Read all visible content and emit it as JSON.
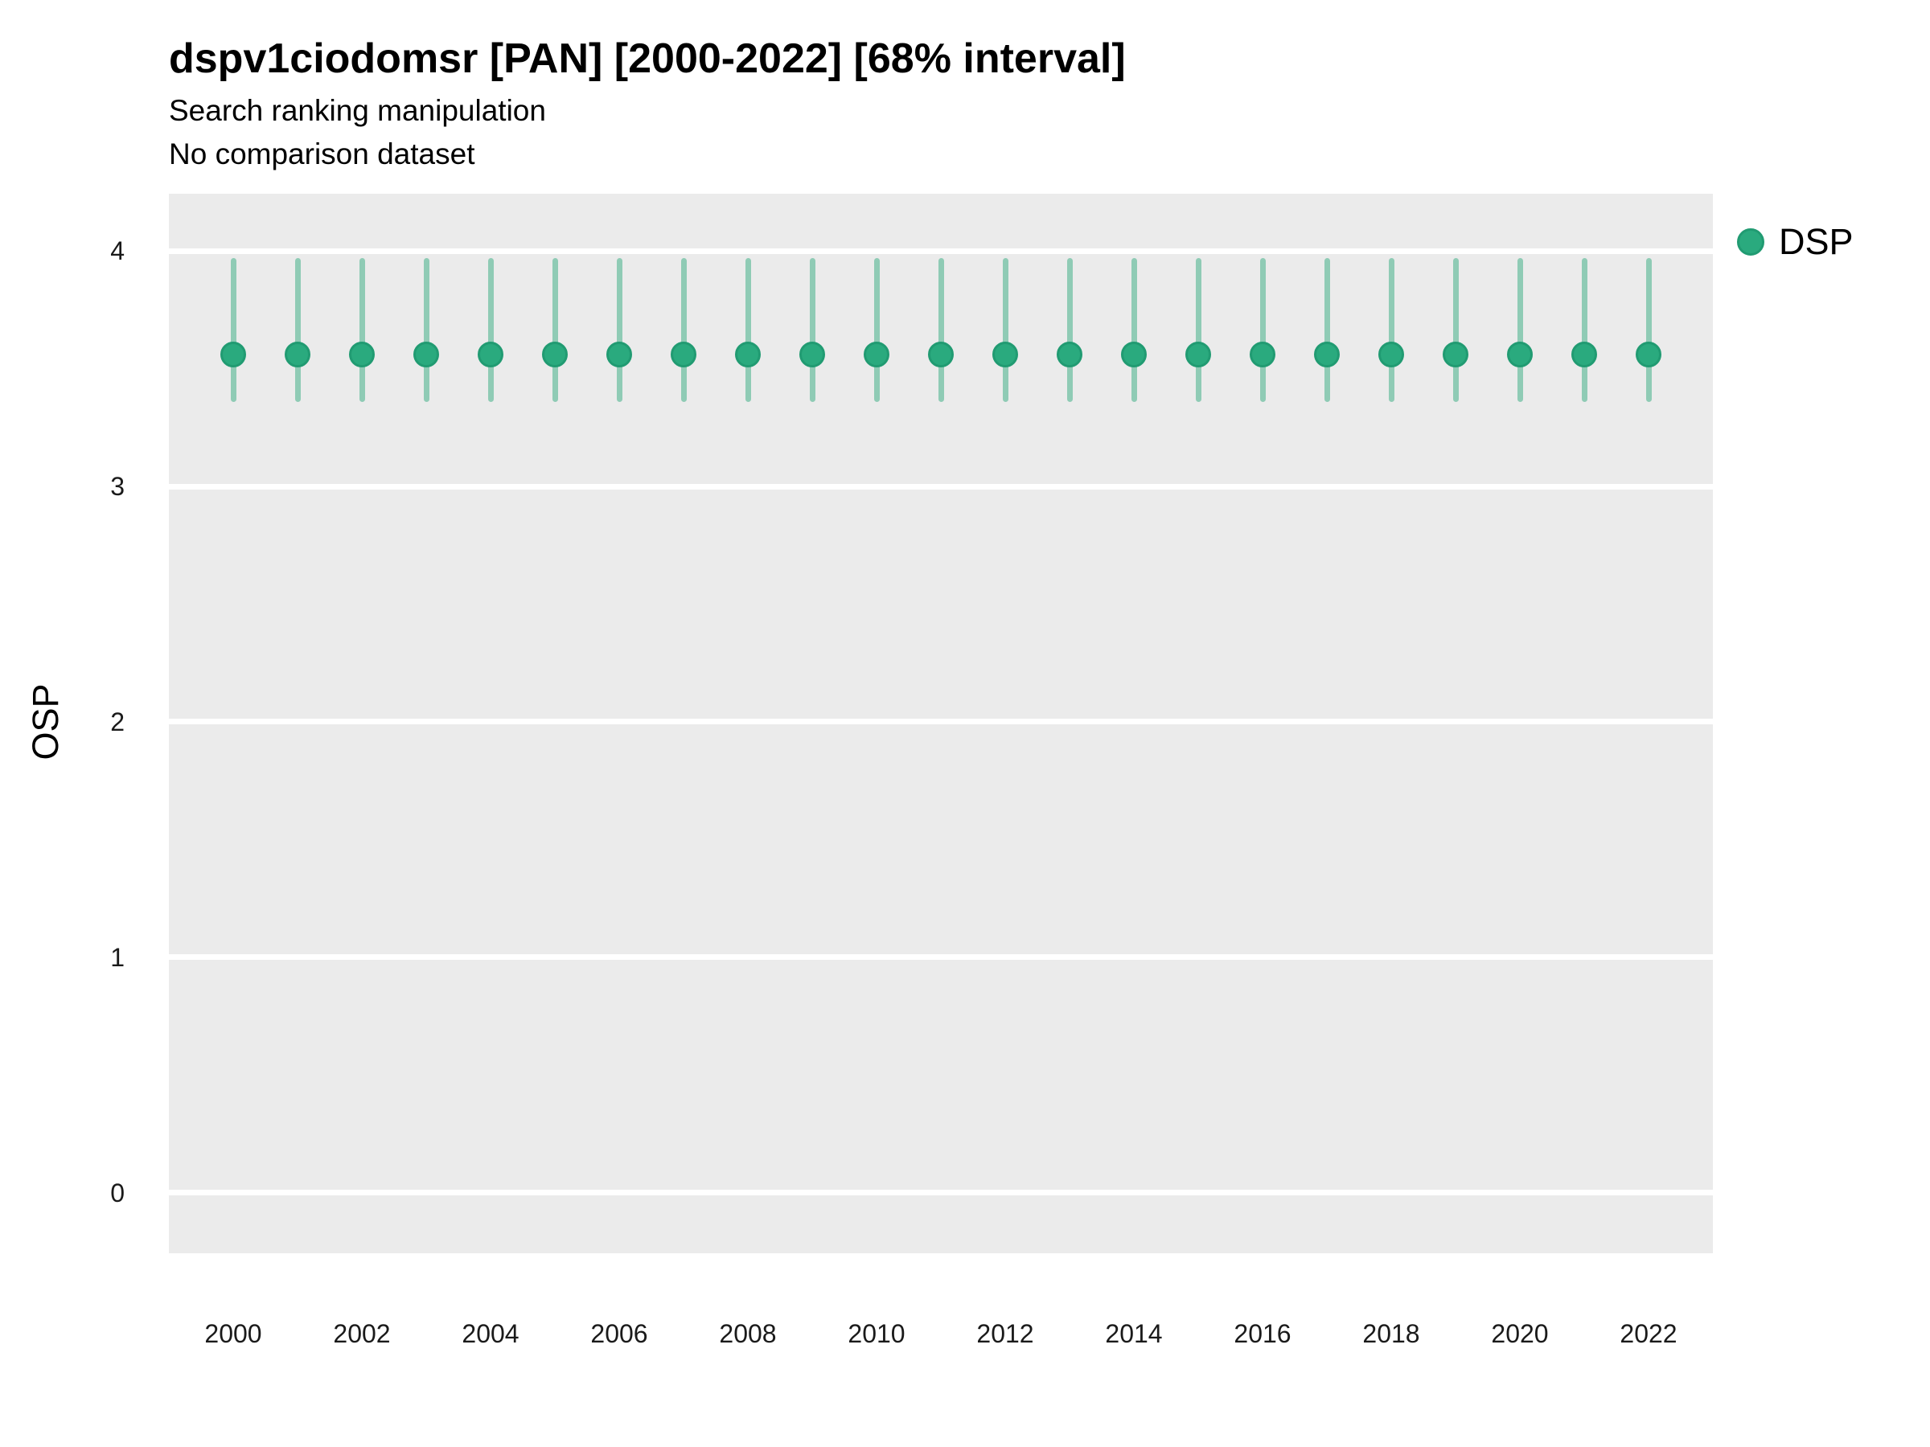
{
  "header": {
    "title": "dspv1ciodomsr [PAN] [2000-2022] [68% interval]",
    "subtitle1": "Search ranking manipulation",
    "subtitle2": "No comparison dataset"
  },
  "colors": {
    "point_fill": "#2aaa7e",
    "point_border": "#219b72",
    "interval_bar": "#8fcbb5",
    "panel_background": "#ebebeb",
    "gridline": "#ffffff",
    "text": "#000000",
    "tick_text": "#1a1a1a"
  },
  "chart_data": {
    "type": "scatter",
    "subtype": "pointrange-68pct-interval",
    "title": "dspv1ciodomsr [PAN] [2000-2022] [68% interval]",
    "subtitle": "Search ranking manipulation",
    "subtitle2": "No comparison dataset",
    "xlabel": "",
    "ylabel": "OSP",
    "legend_position": "right",
    "grid": "major-horizontal-white-on-gray",
    "x": [
      2000,
      2001,
      2002,
      2003,
      2004,
      2005,
      2006,
      2007,
      2008,
      2009,
      2010,
      2011,
      2012,
      2013,
      2014,
      2015,
      2016,
      2017,
      2018,
      2019,
      2020,
      2021,
      2022
    ],
    "series": [
      {
        "name": "DSP",
        "values": [
          3.56,
          3.56,
          3.56,
          3.56,
          3.56,
          3.56,
          3.56,
          3.56,
          3.56,
          3.56,
          3.56,
          3.56,
          3.56,
          3.56,
          3.56,
          3.56,
          3.56,
          3.56,
          3.56,
          3.56,
          3.56,
          3.56,
          3.56
        ],
        "lower": [
          3.36,
          3.36,
          3.36,
          3.36,
          3.36,
          3.36,
          3.36,
          3.36,
          3.36,
          3.36,
          3.36,
          3.36,
          3.36,
          3.36,
          3.36,
          3.36,
          3.36,
          3.36,
          3.36,
          3.36,
          3.36,
          3.36,
          3.36
        ],
        "upper": [
          3.97,
          3.97,
          3.97,
          3.97,
          3.97,
          3.97,
          3.97,
          3.97,
          3.97,
          3.97,
          3.97,
          3.97,
          3.97,
          3.97,
          3.97,
          3.97,
          3.97,
          3.97,
          3.97,
          3.97,
          3.97,
          3.97,
          3.97
        ]
      }
    ],
    "xticks": [
      2000,
      2002,
      2004,
      2006,
      2008,
      2010,
      2012,
      2014,
      2016,
      2018,
      2020,
      2022
    ],
    "yticks": [
      0,
      1,
      2,
      3,
      4
    ],
    "xlim": [
      2000,
      2022
    ],
    "ylim": [
      -0.257,
      4.243
    ]
  }
}
